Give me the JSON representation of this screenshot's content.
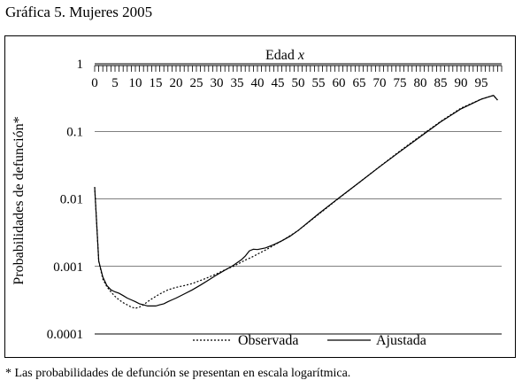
{
  "page": {
    "title": "Gráfica 5. Mujeres 2005",
    "footnote": "* Las probabilidades de defunción se presentan en escala logarítmica."
  },
  "chart_data": {
    "type": "line",
    "title": "",
    "xlabel": "Edad x",
    "ylabel": "Probabilidades de defunción*",
    "x_scale": "linear",
    "y_scale": "log",
    "xlim": [
      0,
      100
    ],
    "ylim": [
      0.0001,
      1
    ],
    "x_ticks": [
      "0",
      "5",
      "10",
      "15",
      "20",
      "25",
      "30",
      "35",
      "40",
      "45",
      "50",
      "55",
      "60",
      "65",
      "70",
      "75",
      "80",
      "85",
      "90",
      "95"
    ],
    "x_tick_values": [
      0,
      5,
      10,
      15,
      20,
      25,
      30,
      35,
      40,
      45,
      50,
      55,
      60,
      65,
      70,
      75,
      80,
      85,
      90,
      95
    ],
    "y_ticks": [
      "1",
      "0.1",
      "0.01",
      "0.001",
      "0.0001"
    ],
    "y_tick_values": [
      1,
      0.1,
      0.01,
      0.001,
      0.0001
    ],
    "x_axis_position": "top",
    "grid": "horizontal",
    "legend_position": "bottom",
    "series": [
      {
        "name": "Observada",
        "style": "dotted",
        "color": "#000000",
        "x": [
          0,
          1,
          2,
          3,
          4,
          5,
          6,
          7,
          8,
          9,
          10,
          11,
          12,
          13,
          14,
          15,
          16,
          17,
          18,
          19,
          20,
          22,
          24,
          26,
          28,
          30,
          32,
          34,
          36,
          37,
          38,
          39,
          40,
          42,
          44,
          46,
          48,
          50,
          55,
          60,
          65,
          70,
          75,
          80,
          85,
          90,
          95,
          98,
          99
        ],
        "y": [
          0.015,
          0.0012,
          0.00065,
          0.0005,
          0.00042,
          0.00036,
          0.00032,
          0.00029,
          0.00027,
          0.00025,
          0.00024,
          0.00025,
          0.00027,
          0.0003,
          0.00033,
          0.00036,
          0.00039,
          0.00042,
          0.00045,
          0.00047,
          0.00049,
          0.00052,
          0.00056,
          0.00062,
          0.00069,
          0.00078,
          0.00089,
          0.001,
          0.00115,
          0.00124,
          0.00132,
          0.00141,
          0.00152,
          0.00175,
          0.00205,
          0.0024,
          0.00285,
          0.0034,
          0.0059,
          0.0102,
          0.0175,
          0.03,
          0.051,
          0.085,
          0.14,
          0.22,
          0.3,
          0.34,
          0.29
        ]
      },
      {
        "name": "Ajustada",
        "style": "solid",
        "color": "#000000",
        "x": [
          0,
          1,
          2,
          3,
          4,
          5,
          6,
          7,
          8,
          9,
          10,
          11,
          12,
          13,
          14,
          15,
          16,
          17,
          18,
          19,
          20,
          22,
          24,
          26,
          28,
          30,
          32,
          34,
          36,
          37,
          38,
          39,
          40,
          42,
          44,
          46,
          48,
          50,
          55,
          60,
          65,
          70,
          75,
          80,
          85,
          90,
          95,
          98,
          99
        ],
        "y": [
          0.015,
          0.0012,
          0.0007,
          0.00052,
          0.00045,
          0.00042,
          0.0004,
          0.00037,
          0.00034,
          0.00032,
          0.0003,
          0.00028,
          0.00027,
          0.00026,
          0.00026,
          0.00026,
          0.00027,
          0.00028,
          0.0003,
          0.00032,
          0.00034,
          0.00039,
          0.00045,
          0.00053,
          0.00063,
          0.00075,
          0.00088,
          0.00103,
          0.00125,
          0.00142,
          0.0017,
          0.0018,
          0.00178,
          0.00188,
          0.0021,
          0.0024,
          0.0028,
          0.0034,
          0.006,
          0.0103,
          0.0175,
          0.0298,
          0.05,
          0.083,
          0.138,
          0.215,
          0.3,
          0.34,
          0.29
        ]
      }
    ]
  }
}
